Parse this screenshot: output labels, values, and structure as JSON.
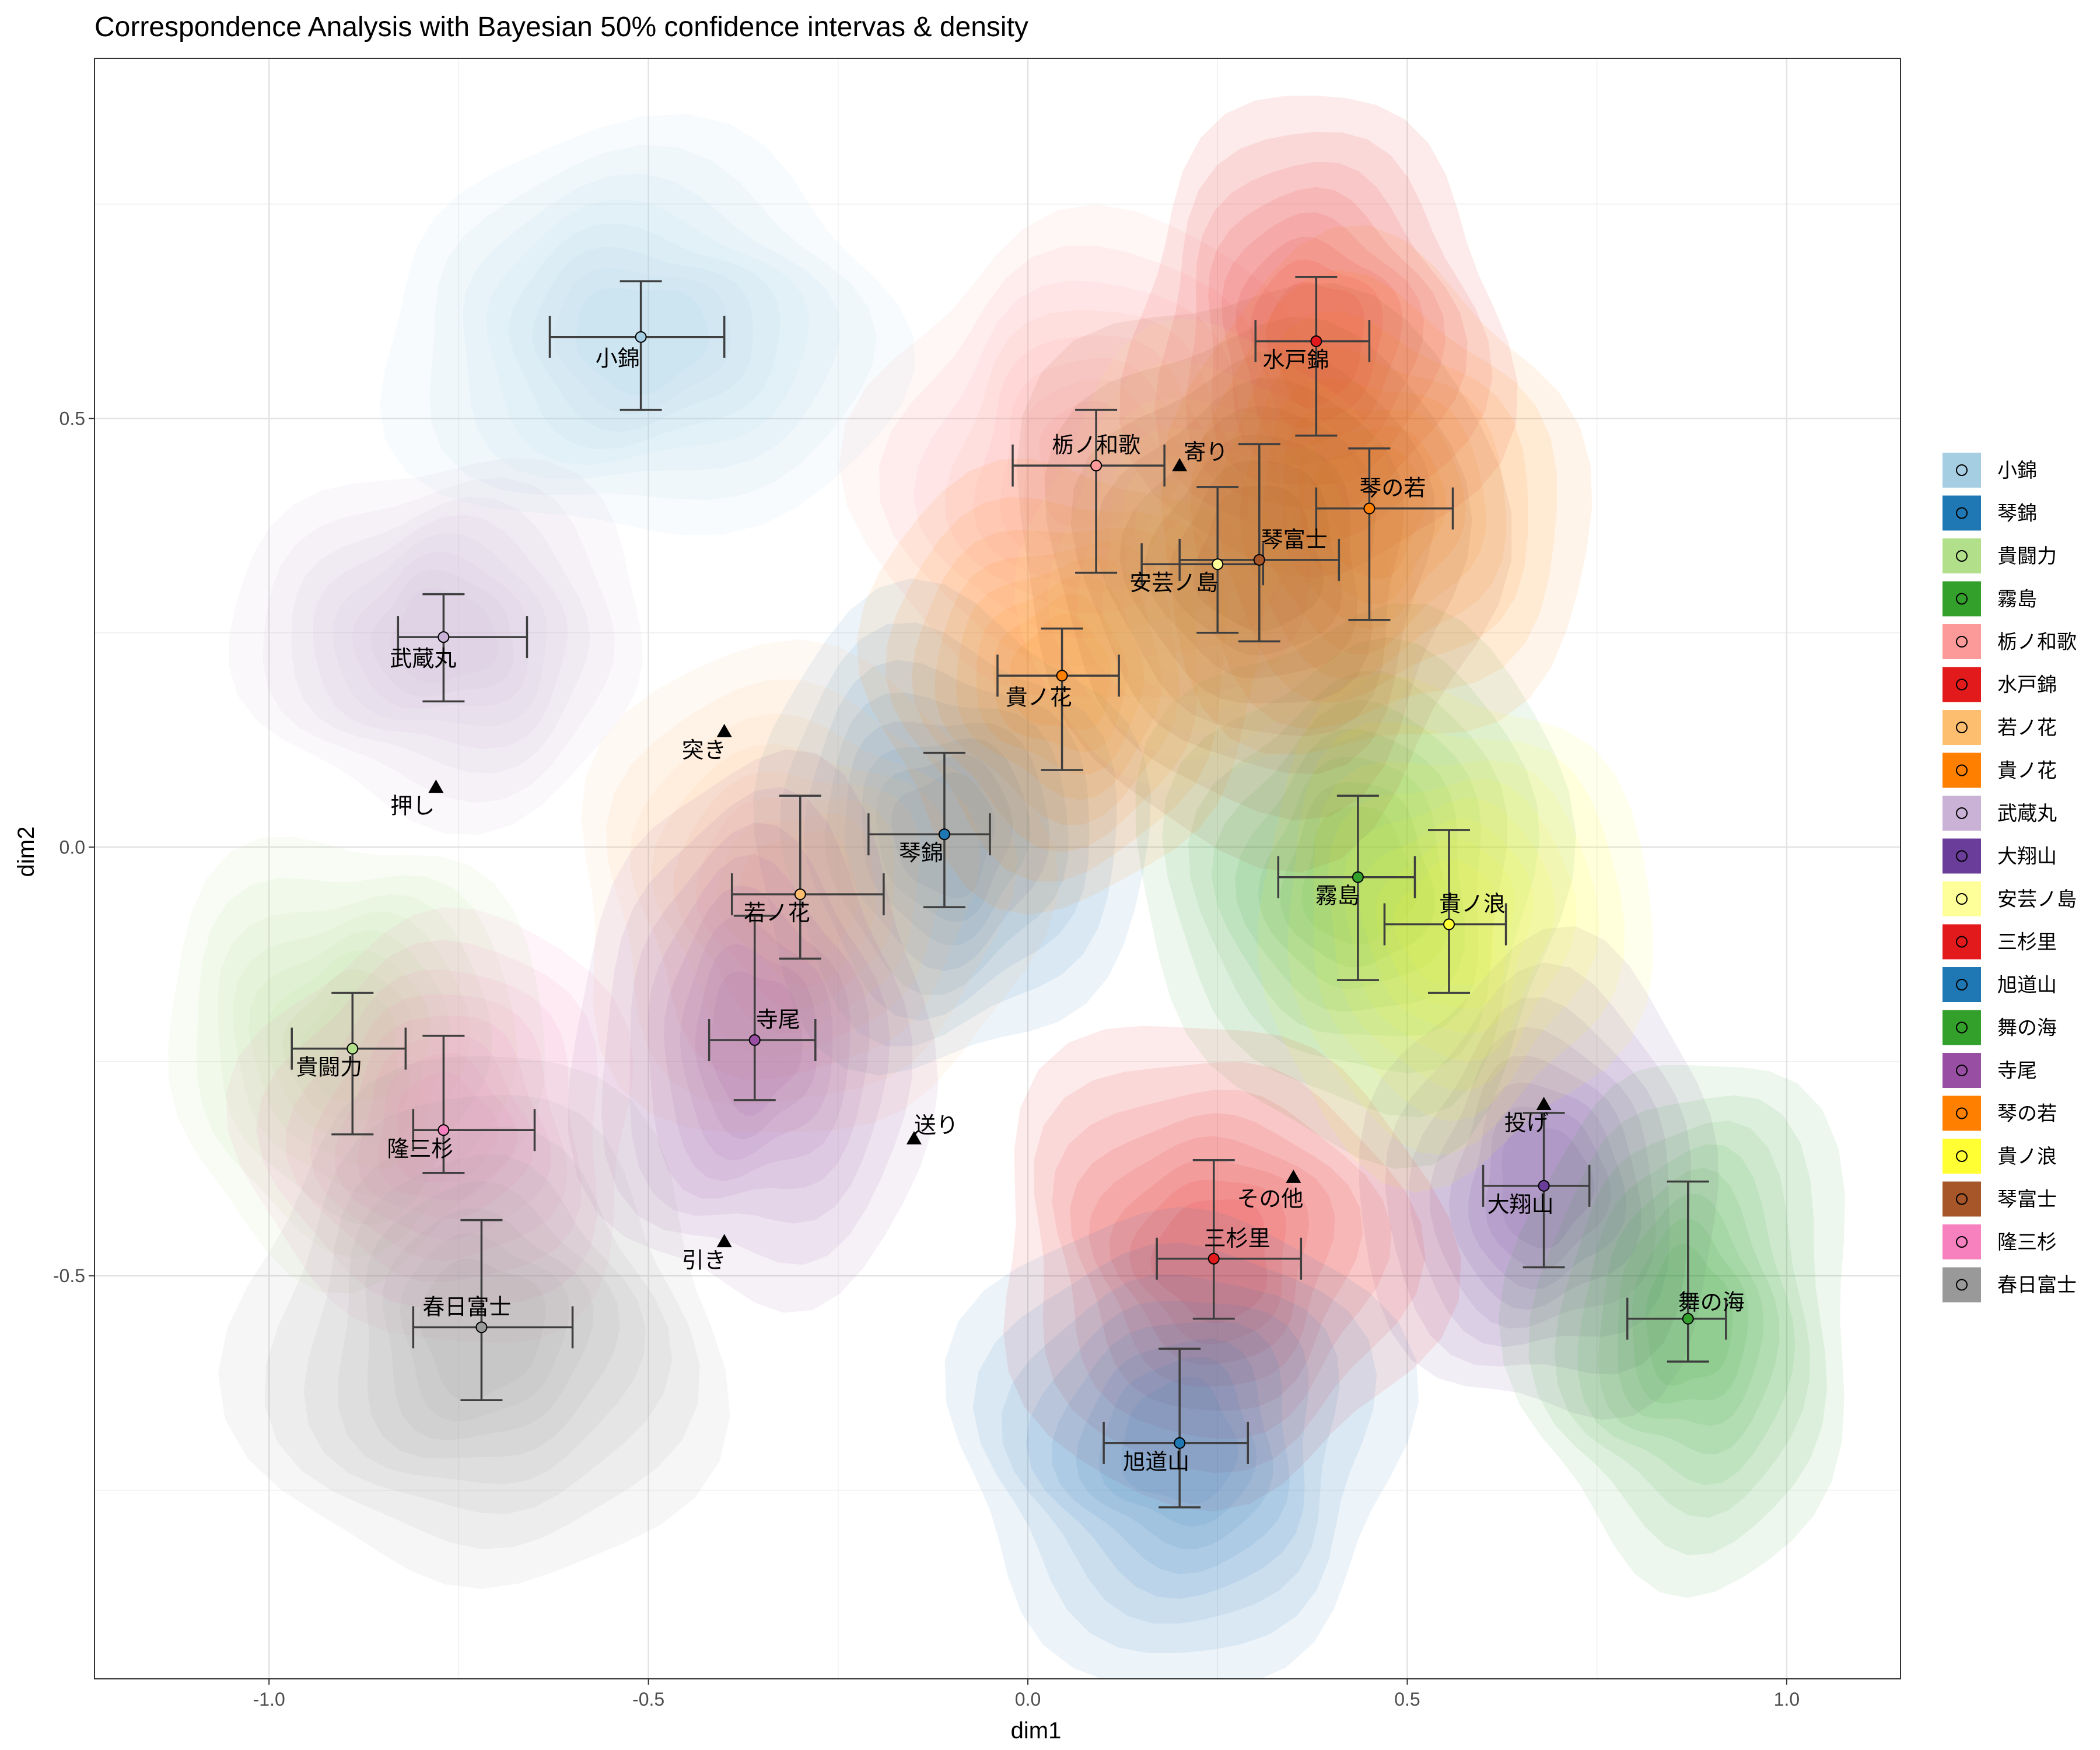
{
  "chart_data": {
    "type": "scatter",
    "title": "Correspondence Analysis with Bayesian 50% confidence intervas & density",
    "xlabel": "dim1",
    "ylabel": "dim2",
    "xlim": [
      -1.23,
      1.15
    ],
    "ylim": [
      -0.97,
      0.92
    ],
    "xticks": [
      -1.0,
      -0.5,
      0.0,
      0.5,
      1.0
    ],
    "xtick_labels": [
      "-1.0",
      "-0.5",
      "0.0",
      "0.5",
      "1.0"
    ],
    "yticks": [
      -0.5,
      0.0,
      0.5
    ],
    "ytick_labels": [
      "-0.5",
      "0.0",
      "0.5"
    ],
    "grid": true,
    "legend_position": "right",
    "series": [
      {
        "name": "小錦",
        "color": "#A6CEE3",
        "x": -0.51,
        "y": 0.595,
        "ci_x": [
          -0.63,
          -0.4
        ],
        "ci_y": [
          0.51,
          0.66
        ],
        "label": "小錦"
      },
      {
        "name": "琴錦",
        "color": "#1F78B4",
        "x": -0.11,
        "y": 0.015,
        "ci_x": [
          -0.21,
          -0.05
        ],
        "ci_y": [
          -0.07,
          0.11
        ],
        "label": "琴錦"
      },
      {
        "name": "貴闘力",
        "color": "#B2DF8A",
        "x": -0.89,
        "y": -0.235,
        "ci_x": [
          -0.97,
          -0.82
        ],
        "ci_y": [
          -0.335,
          -0.17
        ],
        "label": "貴闘力"
      },
      {
        "name": "霧島",
        "color": "#33A02C",
        "x": 0.435,
        "y": -0.035,
        "ci_x": [
          0.33,
          0.51
        ],
        "ci_y": [
          -0.155,
          0.06
        ],
        "label": "霧島"
      },
      {
        "name": "栃ノ和歌",
        "color": "#FB9A99",
        "x": 0.09,
        "y": 0.445,
        "ci_x": [
          -0.02,
          0.18
        ],
        "ci_y": [
          0.32,
          0.51
        ],
        "label": "栃ノ和歌"
      },
      {
        "name": "水戸錦",
        "color": "#E31A1C",
        "x": 0.38,
        "y": 0.59,
        "ci_x": [
          0.3,
          0.45
        ],
        "ci_y": [
          0.48,
          0.665
        ],
        "label": "水戸錦"
      },
      {
        "name": "若ノ花",
        "color": "#FDBF6F",
        "x": -0.3,
        "y": -0.055,
        "ci_x": [
          -0.39,
          -0.19
        ],
        "ci_y": [
          -0.13,
          0.06
        ],
        "label": "若ノ花"
      },
      {
        "name": "貴ノ花",
        "color": "#FF7F00",
        "x": 0.045,
        "y": 0.2,
        "ci_x": [
          -0.04,
          0.12
        ],
        "ci_y": [
          0.09,
          0.255
        ],
        "label": "貴ノ花"
      },
      {
        "name": "武蔵丸",
        "color": "#CAB2D6",
        "x": -0.77,
        "y": 0.245,
        "ci_x": [
          -0.83,
          -0.66
        ],
        "ci_y": [
          0.17,
          0.295
        ],
        "label": "武蔵丸"
      },
      {
        "name": "大翔山",
        "color": "#6A3D9A",
        "x": 0.68,
        "y": -0.395,
        "ci_x": [
          0.6,
          0.74
        ],
        "ci_y": [
          -0.49,
          -0.31
        ],
        "label": "大翔山"
      },
      {
        "name": "安芸ノ島",
        "color": "#FFFF99",
        "x": 0.25,
        "y": 0.33,
        "ci_x": [
          0.15,
          0.31
        ],
        "ci_y": [
          0.25,
          0.42
        ],
        "label": "安芸ノ島"
      },
      {
        "name": "三杉里",
        "color": "#E31A1C",
        "x": 0.245,
        "y": -0.48,
        "ci_x": [
          0.17,
          0.36
        ],
        "ci_y": [
          -0.55,
          -0.365
        ],
        "label": "三杉里"
      },
      {
        "name": "旭道山",
        "color": "#1F78B4",
        "x": 0.2,
        "y": -0.695,
        "ci_x": [
          0.1,
          0.29
        ],
        "ci_y": [
          -0.77,
          -0.585
        ],
        "label": "旭道山"
      },
      {
        "name": "舞の海",
        "color": "#33A02C",
        "x": 0.87,
        "y": -0.55,
        "ci_x": [
          0.79,
          0.92
        ],
        "ci_y": [
          -0.6,
          -0.39
        ],
        "label": "舞の海"
      },
      {
        "name": "寺尾",
        "color": "#984EA3",
        "x": -0.36,
        "y": -0.225,
        "ci_x": [
          -0.42,
          -0.28
        ],
        "ci_y": [
          -0.295,
          -0.08
        ],
        "label": "寺尾"
      },
      {
        "name": "琴の若",
        "color": "#FF7F00",
        "x": 0.45,
        "y": 0.395,
        "ci_x": [
          0.38,
          0.56
        ],
        "ci_y": [
          0.265,
          0.465
        ],
        "label": "琴の若"
      },
      {
        "name": "貴ノ浪",
        "color": "#FFFF33",
        "x": 0.555,
        "y": -0.09,
        "ci_x": [
          0.47,
          0.63
        ],
        "ci_y": [
          -0.17,
          0.02
        ],
        "label": "貴ノ浪"
      },
      {
        "name": "琴富士",
        "color": "#A65628",
        "x": 0.305,
        "y": 0.335,
        "ci_x": [
          0.2,
          0.41
        ],
        "ci_y": [
          0.24,
          0.47
        ],
        "label": "琴富士"
      },
      {
        "name": "隆三杉",
        "color": "#F781BF",
        "x": -0.77,
        "y": -0.33,
        "ci_x": [
          -0.81,
          -0.65
        ],
        "ci_y": [
          -0.38,
          -0.22
        ],
        "label": "隆三杉"
      },
      {
        "name": "春日富士",
        "color": "#999999",
        "x": -0.72,
        "y": -0.56,
        "ci_x": [
          -0.81,
          -0.6
        ],
        "ci_y": [
          -0.645,
          -0.435
        ],
        "label": "春日富士"
      }
    ],
    "column_points": [
      {
        "label": "寄り",
        "x": 0.2,
        "y": 0.445
      },
      {
        "label": "押し",
        "x": -0.78,
        "y": 0.07
      },
      {
        "label": "突き",
        "x": -0.4,
        "y": 0.135
      },
      {
        "label": "引き",
        "x": -0.4,
        "y": -0.46
      },
      {
        "label": "送り",
        "x": -0.15,
        "y": -0.34
      },
      {
        "label": "投げ",
        "x": 0.68,
        "y": -0.3
      },
      {
        "label": "その他",
        "x": 0.35,
        "y": -0.385
      }
    ]
  }
}
